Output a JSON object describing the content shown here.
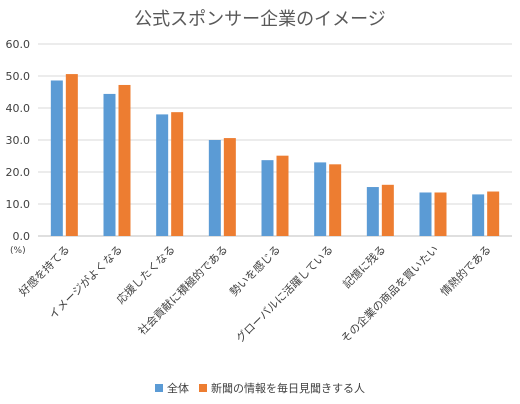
{
  "chart_data": {
    "type": "bar",
    "title": "公式スポンサー企業のイメージ",
    "unit_label": "(%)",
    "categories": [
      "好感を持てる",
      "イメージがよくなる",
      "応援したくなる",
      "社会貢献に積極的である",
      "勢いを感じる",
      "グローバルに活躍している",
      "記憶に残る",
      "その企業の商品を買いたい",
      "情熱的である"
    ],
    "series": [
      {
        "name": "全体",
        "color": "#5B9BD5",
        "values": [
          48.6,
          44.4,
          38.0,
          30.0,
          23.7,
          23.0,
          15.3,
          13.6,
          13.0
        ]
      },
      {
        "name": "新聞の情報を毎日見聞きする人",
        "color": "#ED7D31",
        "values": [
          50.6,
          47.2,
          38.7,
          30.6,
          25.1,
          22.4,
          16.0,
          13.6,
          13.9
        ]
      }
    ],
    "ylim": [
      0,
      60
    ],
    "yticks": [
      "0.0",
      "10.0",
      "20.0",
      "30.0",
      "40.0",
      "50.0",
      "60.0"
    ],
    "grid": true,
    "legend_position": "bottom"
  }
}
